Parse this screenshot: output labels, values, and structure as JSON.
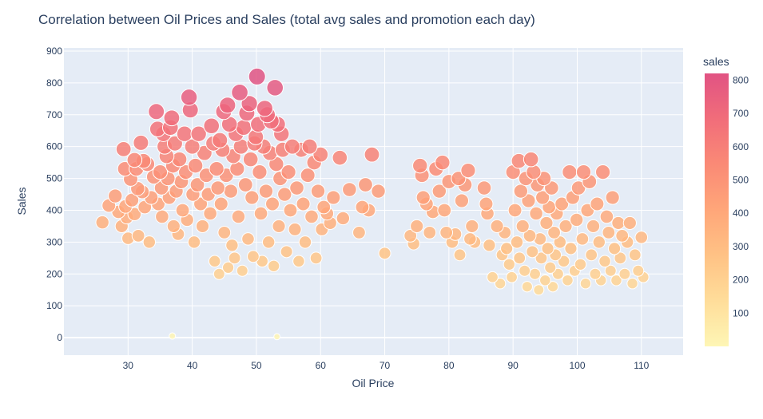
{
  "chart_data": {
    "type": "scatter",
    "title": "Correlation between Oil Prices and Sales (total avg sales and promotion each day)",
    "xlabel": "Oil Price",
    "ylabel": "Sales",
    "xlim": [
      20,
      116.5
    ],
    "ylim": [
      -55,
      910
    ],
    "xticks": [
      30,
      40,
      50,
      60,
      70,
      80,
      90,
      100,
      110
    ],
    "yticks": [
      0,
      100,
      200,
      300,
      400,
      500,
      600,
      700,
      800,
      900
    ],
    "colorbar": {
      "title": "sales",
      "range": [
        0,
        820
      ],
      "ticks": [
        100,
        200,
        300,
        400,
        500,
        600,
        700,
        800
      ],
      "colors": [
        "#fef6b5",
        "#ffdd9a",
        "#ffc285",
        "#ffa679",
        "#fa8a76",
        "#f16d7a",
        "#e15383"
      ]
    },
    "marker_size_encodes": "sales",
    "grid": true,
    "legend": "colorbar-right",
    "series": [
      {
        "points": [
          [
            26,
            362
          ],
          [
            27,
            415
          ],
          [
            28,
            445
          ],
          [
            28.5,
            395
          ],
          [
            29,
            350
          ],
          [
            29.3,
            592
          ],
          [
            29.5,
            530
          ],
          [
            29.6,
            412
          ],
          [
            29.8,
            378
          ],
          [
            30,
            312
          ],
          [
            30.4,
            498
          ],
          [
            30.6,
            432
          ],
          [
            31,
            558
          ],
          [
            31,
            388
          ],
          [
            31.3,
            530
          ],
          [
            31.5,
            468
          ],
          [
            31.6,
            320
          ],
          [
            32,
            612
          ],
          [
            32.2,
            458
          ],
          [
            32.4,
            555
          ],
          [
            32.6,
            410
          ],
          [
            33,
            545
          ],
          [
            33.3,
            300
          ],
          [
            33.6,
            440
          ],
          [
            34,
            505
          ],
          [
            34.4,
            710
          ],
          [
            34.6,
            655
          ],
          [
            34.7,
            420
          ],
          [
            35,
            520
          ],
          [
            35.2,
            470
          ],
          [
            35.3,
            380
          ],
          [
            35.5,
            640
          ],
          [
            35.7,
            600
          ],
          [
            36,
            570
          ],
          [
            36.2,
            500
          ],
          [
            36.4,
            440
          ],
          [
            36.6,
            660
          ],
          [
            36.8,
            690
          ],
          [
            37,
            540
          ],
          [
            37.1,
            350
          ],
          [
            37.3,
            610
          ],
          [
            37.5,
            460
          ],
          [
            37.8,
            325
          ],
          [
            38,
            560
          ],
          [
            38.3,
            490
          ],
          [
            38.5,
            400
          ],
          [
            38.8,
            640
          ],
          [
            39,
            520
          ],
          [
            39.2,
            370
          ],
          [
            39.5,
            755
          ],
          [
            39.7,
            715
          ],
          [
            40,
            600
          ],
          [
            40.1,
            450
          ],
          [
            40.3,
            300
          ],
          [
            40.5,
            540
          ],
          [
            40.8,
            480
          ],
          [
            41,
            640
          ],
          [
            41.3,
            420
          ],
          [
            41.6,
            350
          ],
          [
            41.9,
            580
          ],
          [
            42.2,
            510
          ],
          [
            42.5,
            450
          ],
          [
            42.8,
            390
          ],
          [
            43,
            665
          ],
          [
            43.3,
            610
          ],
          [
            43.5,
            240
          ],
          [
            43.8,
            530
          ],
          [
            44,
            470
          ],
          [
            44.2,
            200
          ],
          [
            44.3,
            620
          ],
          [
            44.5,
            420
          ],
          [
            44.7,
            590
          ],
          [
            44.9,
            710
          ],
          [
            45,
            330
          ],
          [
            45.3,
            510
          ],
          [
            45.5,
            730
          ],
          [
            45.6,
            220
          ],
          [
            45.8,
            670
          ],
          [
            46,
            460
          ],
          [
            46.2,
            290
          ],
          [
            46.4,
            570
          ],
          [
            46.6,
            250
          ],
          [
            46.8,
            640
          ],
          [
            47,
            530
          ],
          [
            47.2,
            380
          ],
          [
            47.4,
            770
          ],
          [
            47.6,
            600
          ],
          [
            47.8,
            210
          ],
          [
            48,
            660
          ],
          [
            48.3,
            480
          ],
          [
            48.5,
            705
          ],
          [
            48.7,
            310
          ],
          [
            48.9,
            735
          ],
          [
            49.1,
            560
          ],
          [
            49.3,
            440
          ],
          [
            49.5,
            255
          ],
          [
            49.7,
            610
          ],
          [
            49.9,
            630
          ],
          [
            50.1,
            820
          ],
          [
            50.3,
            670
          ],
          [
            50.5,
            520
          ],
          [
            50.7,
            390
          ],
          [
            50.9,
            240
          ],
          [
            51.1,
            600
          ],
          [
            51.3,
            720
          ],
          [
            51.5,
            460
          ],
          [
            51.7,
            700
          ],
          [
            51.9,
            300
          ],
          [
            52.1,
            580
          ],
          [
            52.3,
            680
          ],
          [
            52.5,
            420
          ],
          [
            52.7,
            225
          ],
          [
            52.9,
            785
          ],
          [
            53.1,
            545
          ],
          [
            53.3,
            670
          ],
          [
            53.5,
            350
          ],
          [
            53.7,
            500
          ],
          [
            53.9,
            640
          ],
          [
            54.1,
            590
          ],
          [
            54.4,
            450
          ],
          [
            54.7,
            270
          ],
          [
            55,
            520
          ],
          [
            55.3,
            400
          ],
          [
            55.6,
            600
          ],
          [
            56,
            340
          ],
          [
            56.3,
            470
          ],
          [
            56.6,
            240
          ],
          [
            57,
            590
          ],
          [
            57.3,
            420
          ],
          [
            57.6,
            300
          ],
          [
            58,
            510
          ],
          [
            58.3,
            600
          ],
          [
            58.6,
            380
          ],
          [
            59,
            550
          ],
          [
            59.3,
            250
          ],
          [
            59.6,
            460
          ],
          [
            60,
            575
          ],
          [
            60.2,
            340
          ],
          [
            60.5,
            410
          ],
          [
            61,
            390
          ],
          [
            61.5,
            360
          ],
          [
            62,
            440
          ],
          [
            63,
            565
          ],
          [
            63.5,
            375
          ],
          [
            64.5,
            465
          ],
          [
            66,
            330
          ],
          [
            66.5,
            410
          ],
          [
            67,
            480
          ],
          [
            67.5,
            400
          ],
          [
            68,
            575
          ],
          [
            69,
            460
          ],
          [
            70,
            265
          ],
          [
            74,
            320
          ],
          [
            74.5,
            295
          ],
          [
            75,
            350
          ],
          [
            75.5,
            540
          ],
          [
            75.8,
            510
          ],
          [
            76,
            440
          ],
          [
            76.5,
            420
          ],
          [
            77,
            330
          ],
          [
            77.5,
            395
          ],
          [
            78,
            530
          ],
          [
            78.5,
            460
          ],
          [
            79,
            550
          ],
          [
            79.3,
            400
          ],
          [
            79.6,
            330
          ],
          [
            80,
            490
          ],
          [
            80.5,
            300
          ],
          [
            81,
            325
          ],
          [
            81.5,
            500
          ],
          [
            81.7,
            260
          ],
          [
            82,
            430
          ],
          [
            82.5,
            480
          ],
          [
            83,
            525
          ],
          [
            83.3,
            310
          ],
          [
            83.6,
            350
          ],
          [
            84,
            300
          ],
          [
            85.5,
            470
          ],
          [
            85.8,
            420
          ],
          [
            86,
            390
          ],
          [
            86.3,
            290
          ],
          [
            86.8,
            190
          ],
          [
            87.5,
            350
          ],
          [
            88,
            170
          ],
          [
            88.3,
            260
          ],
          [
            88.7,
            330
          ],
          [
            89,
            280
          ],
          [
            89.4,
            230
          ],
          [
            89.8,
            190
          ],
          [
            90,
            520
          ],
          [
            90.3,
            400
          ],
          [
            90.6,
            300
          ],
          [
            90.9,
            555
          ],
          [
            91,
            250
          ],
          [
            91.2,
            460
          ],
          [
            91.5,
            350
          ],
          [
            91.8,
            210
          ],
          [
            92,
            500
          ],
          [
            92.2,
            160
          ],
          [
            92.4,
            430
          ],
          [
            92.6,
            320
          ],
          [
            92.8,
            560
          ],
          [
            93,
            270
          ],
          [
            93.2,
            520
          ],
          [
            93.4,
            200
          ],
          [
            93.6,
            390
          ],
          [
            93.8,
            480
          ],
          [
            94,
            150
          ],
          [
            94.2,
            310
          ],
          [
            94.4,
            250
          ],
          [
            94.6,
            440
          ],
          [
            94.8,
            500
          ],
          [
            95,
            180
          ],
          [
            95.2,
            360
          ],
          [
            95.4,
            280
          ],
          [
            95.6,
            410
          ],
          [
            95.8,
            220
          ],
          [
            96,
            470
          ],
          [
            96.2,
            160
          ],
          [
            96.4,
            330
          ],
          [
            96.6,
            260
          ],
          [
            96.8,
            390
          ],
          [
            97,
            200
          ],
          [
            97.3,
            300
          ],
          [
            97.6,
            420
          ],
          [
            97.9,
            240
          ],
          [
            98.2,
            350
          ],
          [
            98.5,
            180
          ],
          [
            98.8,
            520
          ],
          [
            99,
            280
          ],
          [
            99.3,
            440
          ],
          [
            99.6,
            210
          ],
          [
            99.9,
            370
          ],
          [
            100.2,
            470
          ],
          [
            100.5,
            230
          ],
          [
            100.8,
            310
          ],
          [
            101,
            520
          ],
          [
            101.3,
            170
          ],
          [
            101.6,
            400
          ],
          [
            101.9,
            490
          ],
          [
            102.2,
            260
          ],
          [
            102.5,
            350
          ],
          [
            102.8,
            200
          ],
          [
            103.1,
            420
          ],
          [
            103.4,
            300
          ],
          [
            103.7,
            180
          ],
          [
            104,
            520
          ],
          [
            104.3,
            240
          ],
          [
            104.6,
            380
          ],
          [
            104.9,
            330
          ],
          [
            105.2,
            210
          ],
          [
            105.5,
            440
          ],
          [
            105.8,
            280
          ],
          [
            106.1,
            180
          ],
          [
            106.4,
            360
          ],
          [
            106.7,
            250
          ],
          [
            107,
            320
          ],
          [
            107.4,
            200
          ],
          [
            107.8,
            300
          ],
          [
            108.2,
            360
          ],
          [
            108.6,
            170
          ],
          [
            109,
            260
          ],
          [
            109.5,
            210
          ],
          [
            110,
            315
          ],
          [
            110.3,
            190
          ],
          [
            36.9,
            5
          ],
          [
            53.2,
            3
          ]
        ]
      }
    ]
  }
}
